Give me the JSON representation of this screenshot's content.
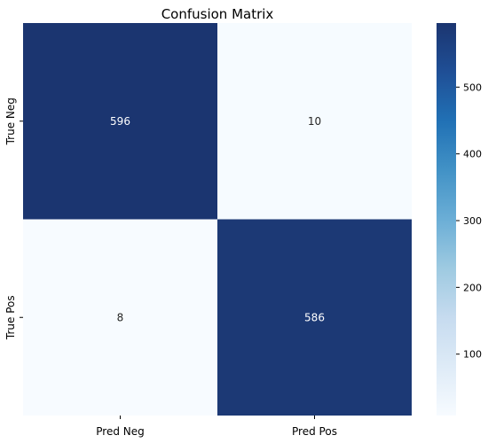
{
  "chart_data": {
    "type": "heatmap",
    "title": "Confusion Matrix",
    "xlabel": "",
    "ylabel": "",
    "x_categories": [
      "Pred Neg",
      "Pred Pos"
    ],
    "y_categories": [
      "True Neg",
      "True Pos"
    ],
    "values": [
      [
        596,
        10
      ],
      [
        8,
        586
      ]
    ],
    "colorbar": {
      "range": [
        8,
        596
      ],
      "ticks": [
        100,
        200,
        300,
        400,
        500
      ],
      "colormap": "Blues"
    },
    "colors": {
      "low": "#f7fbff",
      "high": "#1b3570",
      "text_on_dark": "#ffffff",
      "text_on_light": "#262626"
    }
  }
}
